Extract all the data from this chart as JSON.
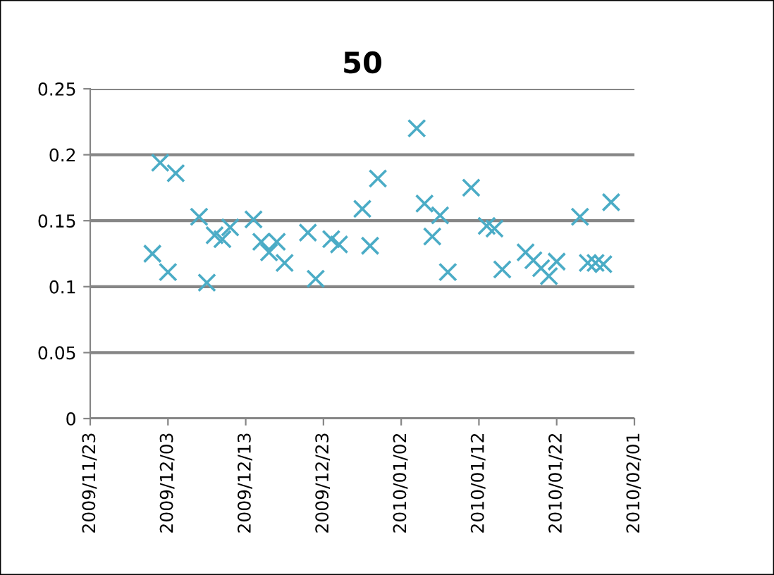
{
  "chart_data": {
    "type": "scatter",
    "title": "50",
    "x": [
      "2009-12-01",
      "2009-12-02",
      "2009-12-03",
      "2009-12-04",
      "2009-12-07",
      "2009-12-08",
      "2009-12-09",
      "2009-12-10",
      "2009-12-11",
      "2009-12-14",
      "2009-12-15",
      "2009-12-16",
      "2009-12-17",
      "2009-12-18",
      "2009-12-21",
      "2009-12-22",
      "2009-12-24",
      "2009-12-25",
      "2009-12-28",
      "2009-12-29",
      "2009-12-30",
      "2010-01-04",
      "2010-01-05",
      "2010-01-06",
      "2010-01-07",
      "2010-01-08",
      "2010-01-11",
      "2010-01-13",
      "2010-01-14",
      "2010-01-15",
      "2010-01-18",
      "2010-01-19",
      "2010-01-20",
      "2010-01-21",
      "2010-01-22",
      "2010-01-25",
      "2010-01-26",
      "2010-01-27",
      "2010-01-28",
      "2010-01-29"
    ],
    "series": [
      {
        "color": "#4bacc6",
        "values": [
          0.125,
          0.194,
          0.111,
          0.186,
          0.153,
          0.103,
          0.139,
          0.136,
          0.145,
          0.151,
          0.134,
          0.126,
          0.134,
          0.118,
          0.141,
          0.106,
          0.136,
          0.132,
          0.159,
          0.131,
          0.182,
          0.22,
          0.163,
          0.138,
          0.154,
          0.111,
          0.175,
          0.146,
          0.144,
          0.113,
          0.126,
          0.12,
          0.114,
          0.108,
          0.119,
          0.153,
          0.118,
          0.118,
          0.117,
          0.164
        ]
      }
    ],
    "xlim": [
      "2009-11-23",
      "2010-02-01"
    ],
    "xticks": [
      {
        "value": "2009-11-23",
        "label": "2009/11/23"
      },
      {
        "value": "2009-12-03",
        "label": "2009/12/03"
      },
      {
        "value": "2009-12-13",
        "label": "2009/12/13"
      },
      {
        "value": "2009-12-23",
        "label": "2009/12/23"
      },
      {
        "value": "2010-01-02",
        "label": "2010/01/02"
      },
      {
        "value": "2010-01-12",
        "label": "2010/01/12"
      },
      {
        "value": "2010-01-22",
        "label": "2010/01/22"
      },
      {
        "value": "2010-02-01",
        "label": "2010/02/01"
      }
    ],
    "ylim": [
      0,
      0.25
    ],
    "yticks": [
      0,
      0.05,
      0.1,
      0.15,
      0.2,
      0.25
    ],
    "grid": "y",
    "legend": false,
    "marker": "cross"
  }
}
